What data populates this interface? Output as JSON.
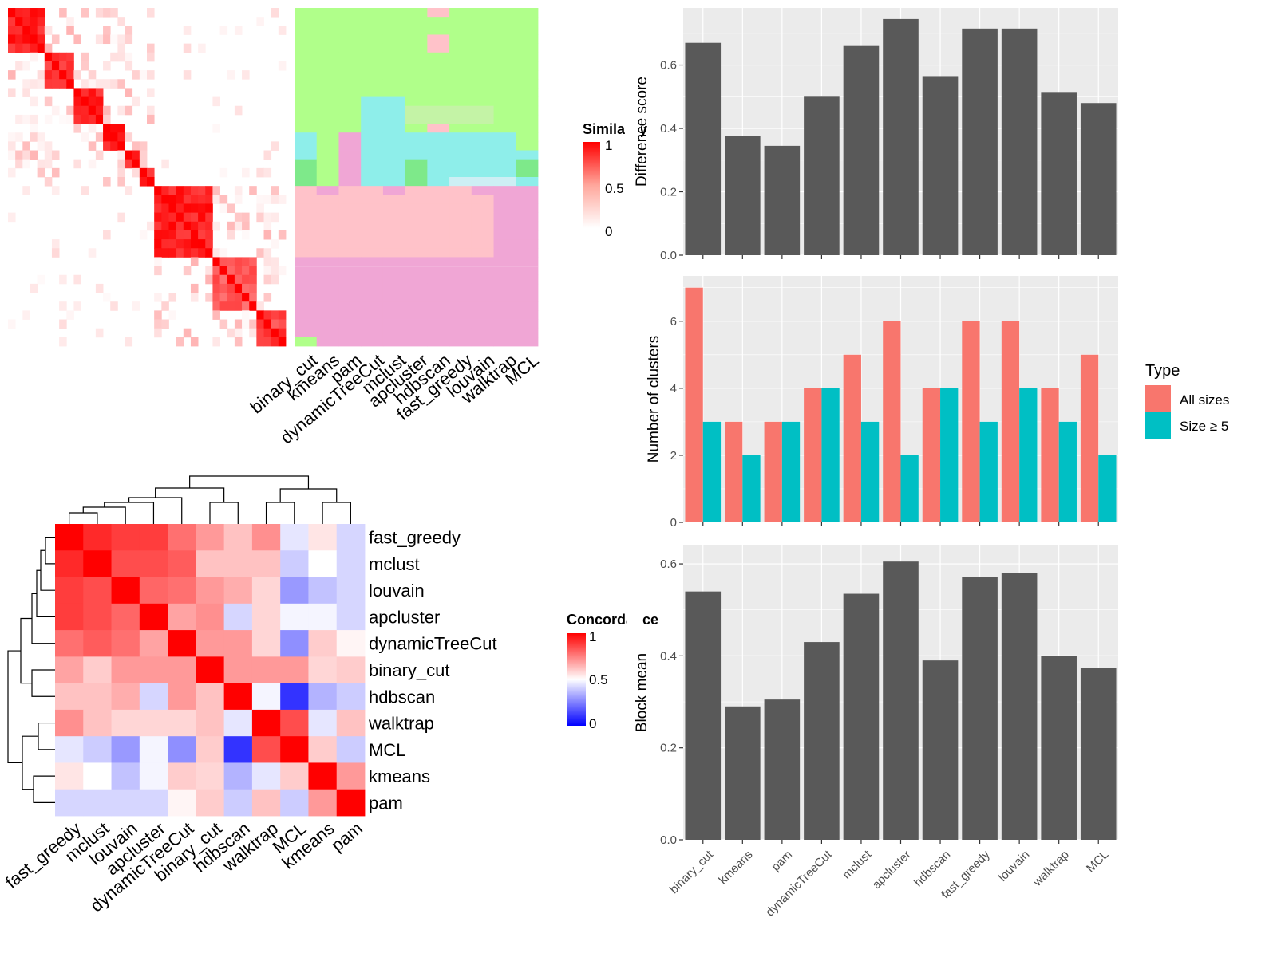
{
  "colors": {
    "bar_dark": "#595959",
    "all_sizes": "#F8766D",
    "size5": "#00BFC4",
    "panel_bg": "#EBEBEB",
    "grid": "#FFFFFF",
    "red": "#FF0000",
    "blue": "#0000FF",
    "green": "#B0FF8A",
    "dark_green": "#7EE98A",
    "cyan": "#8EEEEA",
    "pink": "#F0A6D5",
    "light_pink": "#FFC2C9",
    "light_blue": "#CDEFF4"
  },
  "chart_data": [
    {
      "id": "similarity_heatmap",
      "type": "heatmap",
      "title": "",
      "n_rows": 38,
      "n_cols": 38,
      "legend": {
        "title": "Similarity",
        "ticks": [
          "1",
          "0.5",
          "0"
        ],
        "scale": "white-red"
      },
      "diagonal_blocks": [
        {
          "rows": [
            0,
            4
          ],
          "value": 1.0
        },
        {
          "rows": [
            5,
            8
          ],
          "value": 0.9
        },
        {
          "rows": [
            9,
            12
          ],
          "value": 0.95
        },
        {
          "rows": [
            13,
            15
          ],
          "value": 1.0
        },
        {
          "rows": [
            16,
            17
          ],
          "value": 1.0
        },
        {
          "rows": [
            18,
            19
          ],
          "value": 1.0
        },
        {
          "rows": [
            20,
            27
          ],
          "value": 1.0
        },
        {
          "rows": [
            28,
            33
          ],
          "value": 0.75
        },
        {
          "rows": [
            34,
            37
          ],
          "value": 0.85
        }
      ]
    },
    {
      "id": "cluster_assignment_map",
      "type": "heatmap",
      "title": "",
      "columns": [
        "binary_cut",
        "kmeans",
        "pam",
        "dynamicTreeCut",
        "mclust",
        "apcluster",
        "hdbscan",
        "fast_greedy",
        "louvain",
        "walktrap",
        "MCL"
      ],
      "n_rows": 38,
      "legend": "none"
    },
    {
      "id": "concordance_heatmap",
      "type": "heatmap",
      "title": "",
      "rows": [
        "fast_greedy",
        "mclust",
        "louvain",
        "apcluster",
        "dynamicTreeCut",
        "binary_cut",
        "hdbscan",
        "walktrap",
        "MCL",
        "kmeans",
        "pam"
      ],
      "columns": [
        "fast_greedy",
        "mclust",
        "louvain",
        "apcluster",
        "dynamicTreeCut",
        "binary_cut",
        "hdbscan",
        "walktrap",
        "MCL",
        "kmeans",
        "pam"
      ],
      "legend": {
        "title": "Concordance",
        "ticks": [
          "1",
          "0.5",
          "0"
        ],
        "scale": "blue-white-red"
      },
      "values": [
        [
          1.0,
          0.92,
          0.88,
          0.88,
          0.78,
          0.7,
          0.62,
          0.72,
          0.45,
          0.55,
          0.42
        ],
        [
          0.92,
          1.0,
          0.85,
          0.85,
          0.82,
          0.62,
          0.62,
          0.62,
          0.4,
          0.5,
          0.42
        ],
        [
          0.88,
          0.85,
          1.0,
          0.8,
          0.78,
          0.7,
          0.66,
          0.58,
          0.3,
          0.38,
          0.42
        ],
        [
          0.88,
          0.85,
          0.8,
          1.0,
          0.68,
          0.72,
          0.42,
          0.58,
          0.48,
          0.48,
          0.42
        ],
        [
          0.78,
          0.82,
          0.78,
          0.68,
          1.0,
          0.7,
          0.7,
          0.58,
          0.28,
          0.6,
          0.52
        ],
        [
          0.68,
          0.6,
          0.7,
          0.7,
          0.7,
          1.0,
          0.7,
          0.7,
          0.7,
          0.58,
          0.6
        ],
        [
          0.62,
          0.62,
          0.66,
          0.42,
          0.7,
          0.62,
          1.0,
          0.48,
          0.1,
          0.35,
          0.4
        ],
        [
          0.72,
          0.62,
          0.58,
          0.58,
          0.58,
          0.62,
          0.45,
          1.0,
          0.85,
          0.45,
          0.62
        ],
        [
          0.45,
          0.4,
          0.3,
          0.48,
          0.28,
          0.6,
          0.1,
          0.85,
          1.0,
          0.6,
          0.4
        ],
        [
          0.55,
          0.5,
          0.38,
          0.48,
          0.6,
          0.58,
          0.35,
          0.45,
          0.6,
          1.0,
          0.7
        ],
        [
          0.42,
          0.42,
          0.42,
          0.42,
          0.52,
          0.6,
          0.4,
          0.62,
          0.4,
          0.7,
          1.0
        ]
      ]
    },
    {
      "id": "difference_score",
      "type": "bar",
      "categories": [
        "binary_cut",
        "kmeans",
        "pam",
        "dynamicTreeCut",
        "mclust",
        "apcluster",
        "hdbscan",
        "fast_greedy",
        "louvain",
        "walktrap",
        "MCL"
      ],
      "values": [
        0.67,
        0.375,
        0.345,
        0.5,
        0.66,
        0.745,
        0.565,
        0.715,
        0.715,
        0.515,
        0.48
      ],
      "xlabel": "",
      "ylabel": "Difference score",
      "ylim": [
        0,
        0.78
      ],
      "yticks": [
        0.0,
        0.2,
        0.4,
        0.6
      ],
      "grid": true
    },
    {
      "id": "number_of_clusters",
      "type": "bar",
      "categories": [
        "binary_cut",
        "kmeans",
        "pam",
        "dynamicTreeCut",
        "mclust",
        "apcluster",
        "hdbscan",
        "fast_greedy",
        "louvain",
        "walktrap",
        "MCL"
      ],
      "series": [
        {
          "name": "All sizes",
          "values": [
            7,
            3,
            3,
            4,
            5,
            6,
            4,
            6,
            6,
            4,
            5
          ]
        },
        {
          "name": "Size ≥ 5",
          "values": [
            3,
            2,
            3,
            4,
            3,
            2,
            4,
            3,
            4,
            3,
            2
          ]
        }
      ],
      "xlabel": "",
      "ylabel": "Number of clusters",
      "ylim": [
        0,
        7.35
      ],
      "yticks": [
        0,
        2,
        4,
        6
      ],
      "legend": {
        "title": "Type",
        "position": "right"
      },
      "grid": true
    },
    {
      "id": "block_mean",
      "type": "bar",
      "categories": [
        "binary_cut",
        "kmeans",
        "pam",
        "dynamicTreeCut",
        "mclust",
        "apcluster",
        "hdbscan",
        "fast_greedy",
        "louvain",
        "walktrap",
        "MCL"
      ],
      "values": [
        0.54,
        0.29,
        0.305,
        0.43,
        0.535,
        0.605,
        0.39,
        0.572,
        0.58,
        0.4,
        0.373
      ],
      "xlabel": "",
      "ylabel": "Block mean",
      "ylim": [
        0,
        0.64
      ],
      "yticks": [
        0.0,
        0.2,
        0.4,
        0.6
      ],
      "grid": true
    }
  ]
}
